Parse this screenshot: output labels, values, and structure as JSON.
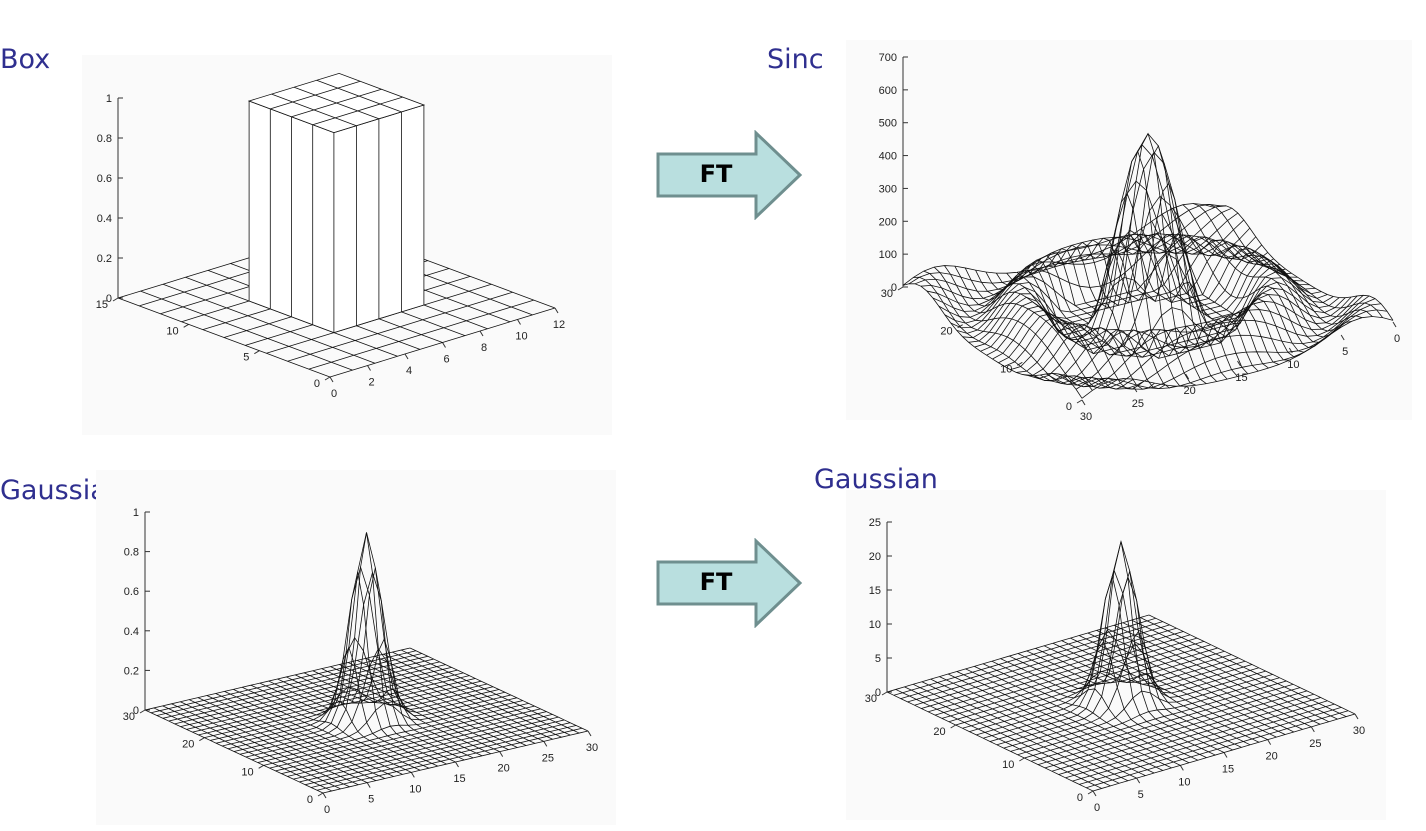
{
  "labels": {
    "box": "Box",
    "sinc": "Sinc",
    "gaussian_left": "Gaussian",
    "gaussian_right": "Gaussian"
  },
  "arrows": {
    "top": "FT",
    "bottom": "FT"
  },
  "colors": {
    "label": "#2f2f8f",
    "arrow_fill": "#b9dfdf",
    "arrow_stroke": "#6f8f8f",
    "mesh": "#111111"
  },
  "chart_data": [
    {
      "type": "surface",
      "function": "box",
      "z_ticks": [
        "0",
        "0.2",
        "0.4",
        "0.6",
        "0.8",
        "1"
      ],
      "x_ticks": [
        "0",
        "2",
        "4",
        "6",
        "8",
        "10",
        "12"
      ],
      "y_ticks": [
        "0",
        "5",
        "10",
        "15"
      ],
      "zlim": [
        0,
        1
      ],
      "xlim": [
        0,
        12
      ],
      "ylim": [
        0,
        15
      ]
    },
    {
      "type": "surface",
      "function": "sinc",
      "z_ticks": [
        "0",
        "100",
        "200",
        "300",
        "400",
        "500",
        "600",
        "700"
      ],
      "x_ticks": [
        "30",
        "25",
        "20",
        "15",
        "10",
        "5",
        "0"
      ],
      "y_ticks": [
        "0",
        "10",
        "20",
        "30"
      ],
      "zlim": [
        0,
        700
      ],
      "xlim": [
        0,
        30
      ],
      "ylim": [
        0,
        30
      ]
    },
    {
      "type": "surface",
      "function": "gaussian",
      "z_ticks": [
        "0",
        "0.2",
        "0.4",
        "0.6",
        "0.8",
        "1"
      ],
      "x_ticks": [
        "0",
        "5",
        "10",
        "15",
        "20",
        "25",
        "30"
      ],
      "y_ticks": [
        "0",
        "10",
        "20",
        "30"
      ],
      "zlim": [
        0,
        1
      ],
      "xlim": [
        0,
        30
      ],
      "ylim": [
        0,
        30
      ]
    },
    {
      "type": "surface",
      "function": "gaussian",
      "z_ticks": [
        "0",
        "5",
        "10",
        "15",
        "20",
        "25"
      ],
      "x_ticks": [
        "0",
        "5",
        "10",
        "15",
        "20",
        "25",
        "30"
      ],
      "y_ticks": [
        "0",
        "10",
        "20",
        "30"
      ],
      "zlim": [
        0,
        25
      ],
      "xlim": [
        0,
        30
      ],
      "ylim": [
        0,
        30
      ]
    }
  ]
}
